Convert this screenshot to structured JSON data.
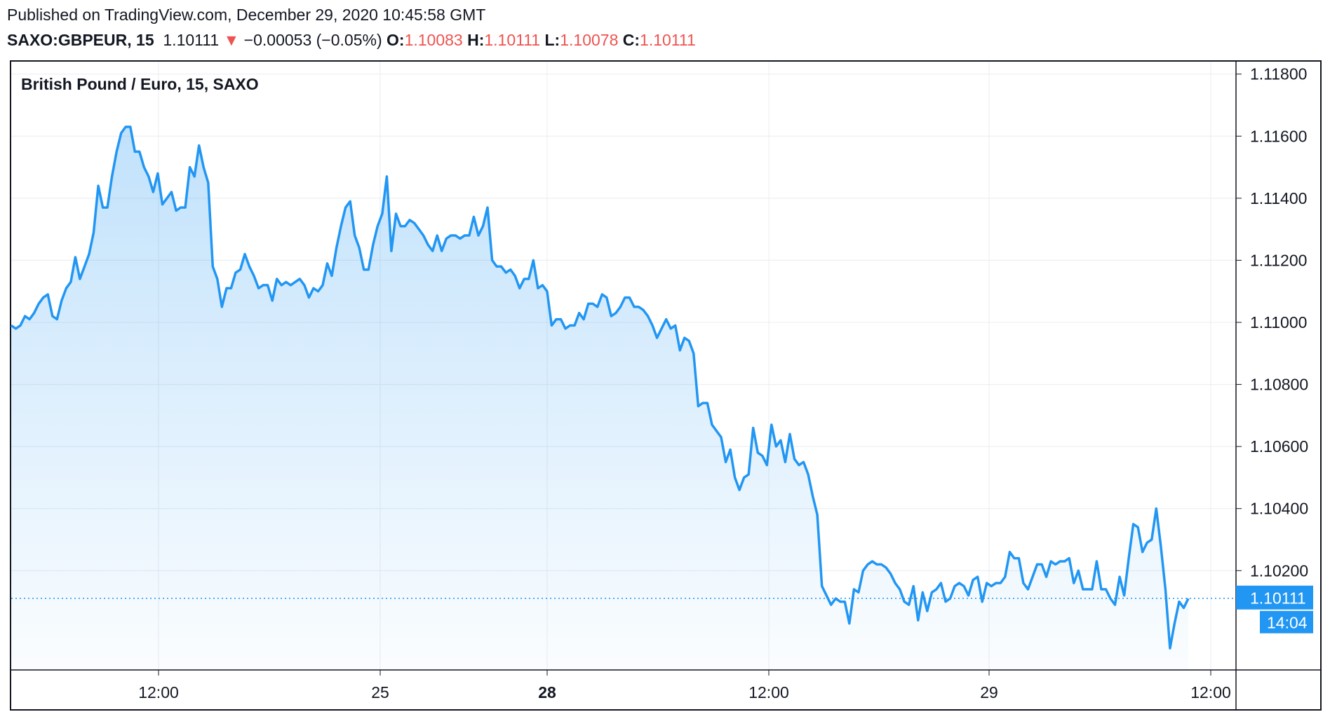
{
  "header": {
    "published": "Published on TradingView.com, December 29, 2020 10:45:58 GMT",
    "symbol": "SAXO:GBPEUR, 15",
    "last": "1.10111",
    "change_arrow": "▼",
    "change": "−0.00053 (−0.05%)",
    "o_label": "O:",
    "o_value": "1.10083",
    "h_label": "H:",
    "h_value": "1.10111",
    "l_label": "L:",
    "l_value": "1.10078",
    "c_label": "C:",
    "c_value": "1.10111"
  },
  "colors": {
    "line": "#2196f3",
    "down": "#ef5350",
    "grid": "#e9ecf0",
    "label_bg": "#2196f3"
  },
  "chart_data": {
    "type": "area",
    "title": "British Pound / Euro, 15, SAXO",
    "ylim": [
      1.0988,
      1.1184
    ],
    "grid": true,
    "y_ticks": [
      "1.11800",
      "1.11600",
      "1.11400",
      "1.11200",
      "1.11000",
      "1.10800",
      "1.10600",
      "1.10400",
      "1.10200"
    ],
    "x_ticks": [
      {
        "label": "12:00",
        "bold": false
      },
      {
        "label": "25",
        "bold": false
      },
      {
        "label": "28",
        "bold": true
      },
      {
        "label": "12:00",
        "bold": false
      },
      {
        "label": "29",
        "bold": false
      },
      {
        "label": "12:00",
        "bold": false
      }
    ],
    "last_price_label": "1.10111",
    "countdown_label": "14:04",
    "series": [
      {
        "values": [
          1.1099,
          1.1098,
          1.1099,
          1.1102,
          1.1101,
          1.1103,
          1.1106,
          1.1108,
          1.1109,
          1.1102,
          1.1101,
          1.1107,
          1.1111,
          1.1113,
          1.1121,
          1.1114,
          1.1118,
          1.1122,
          1.1129,
          1.1144,
          1.1137,
          1.1137,
          1.1147,
          1.1155,
          1.1161,
          1.1163,
          1.1163,
          1.1155,
          1.1155,
          1.115,
          1.1147,
          1.1142,
          1.1148,
          1.1138,
          1.114,
          1.1142,
          1.1136,
          1.1137,
          1.1137,
          1.115,
          1.1147,
          1.1157,
          1.115,
          1.1145,
          1.1118,
          1.1114,
          1.1105,
          1.1111,
          1.1111,
          1.1116,
          1.1117,
          1.1122,
          1.1118,
          1.1115,
          1.1111,
          1.1112,
          1.1112,
          1.1107,
          1.1114,
          1.1112,
          1.1113,
          1.1112,
          1.1113,
          1.1114,
          1.1112,
          1.1108,
          1.1111,
          1.111,
          1.1112,
          1.1119,
          1.1115,
          1.1124,
          1.1131,
          1.1137,
          1.1139,
          1.1128,
          1.1124,
          1.1117,
          1.1117,
          1.1125,
          1.1131,
          1.1135,
          1.1147,
          1.1123,
          1.1135,
          1.1131,
          1.1131,
          1.1133,
          1.1132,
          1.113,
          1.1128,
          1.1125,
          1.1123,
          1.1128,
          1.1123,
          1.1127,
          1.1128,
          1.1128,
          1.1127,
          1.1128,
          1.1128,
          1.1134,
          1.1128,
          1.1131,
          1.1137,
          1.112,
          1.1118,
          1.1118,
          1.1116,
          1.1117,
          1.1115,
          1.1111,
          1.1114,
          1.1114,
          1.112,
          1.1111,
          1.1112,
          1.111,
          1.1099,
          1.1101,
          1.1101,
          1.1098,
          1.1099,
          1.1099,
          1.1103,
          1.1101,
          1.1106,
          1.1106,
          1.1105,
          1.1109,
          1.1108,
          1.1102,
          1.1103,
          1.1105,
          1.1108,
          1.1108,
          1.1105,
          1.1105,
          1.1104,
          1.1102,
          1.1099,
          1.1095,
          1.1098,
          1.1101,
          1.1098,
          1.1099,
          1.1091,
          1.1095,
          1.1094,
          1.109,
          1.1073,
          1.1074,
          1.1074,
          1.1067,
          1.1065,
          1.1063,
          1.1055,
          1.1059,
          1.105,
          1.1046,
          1.105,
          1.1051,
          1.1066,
          1.1058,
          1.1057,
          1.1054,
          1.1067,
          1.106,
          1.1062,
          1.1055,
          1.1064,
          1.1056,
          1.1054,
          1.1055,
          1.1051,
          1.1044,
          1.1038,
          1.1015,
          1.1012,
          1.1009,
          1.1011,
          1.101,
          1.101,
          1.1003,
          1.1014,
          1.1013,
          1.102,
          1.1022,
          1.1023,
          1.1022,
          1.1022,
          1.1021,
          1.1019,
          1.1016,
          1.1014,
          1.101,
          1.1009,
          1.1015,
          1.1004,
          1.1013,
          1.1007,
          1.1013,
          1.1014,
          1.1016,
          1.101,
          1.1011,
          1.1015,
          1.1016,
          1.1015,
          1.1012,
          1.1017,
          1.1018,
          1.101,
          1.1016,
          1.1015,
          1.1016,
          1.1016,
          1.1018,
          1.1026,
          1.1024,
          1.1024,
          1.1016,
          1.1014,
          1.1018,
          1.1022,
          1.1022,
          1.1018,
          1.1023,
          1.1022,
          1.1023,
          1.1023,
          1.1024,
          1.1016,
          1.102,
          1.1014,
          1.1014,
          1.1014,
          1.1023,
          1.1014,
          1.1014,
          1.1011,
          1.1009,
          1.1018,
          1.1012,
          1.1024,
          1.1035,
          1.1034,
          1.1026,
          1.1029,
          1.103,
          1.104,
          1.1028,
          1.1014,
          1.0995,
          1.1003,
          1.101,
          1.1008,
          1.1011
        ]
      }
    ]
  }
}
